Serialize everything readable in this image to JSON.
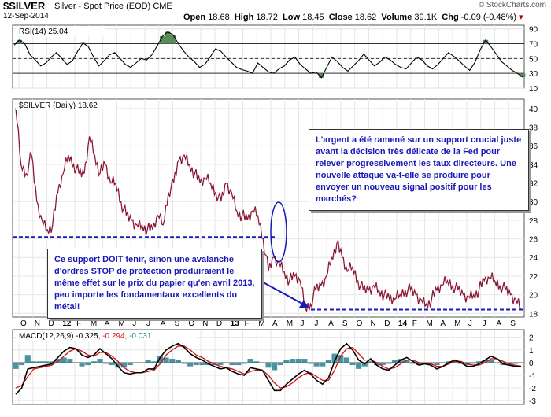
{
  "header": {
    "symbol": "$SILVER",
    "subtitle": "Silver - Spot Price (EOD)",
    "exchange": "CME",
    "date": "12-Sep-2014",
    "brand": "© StockCharts.com",
    "quote": {
      "open_label": "Open",
      "open": "18.68",
      "high_label": "High",
      "high": "18.72",
      "low_label": "Low",
      "low": "18.45",
      "close_label": "Close",
      "close": "18.62",
      "volume_label": "Volume",
      "volume": "39.1K",
      "chg_label": "Chg",
      "chg": "-0.09 (-0.48%)",
      "chg_color": "#c00000"
    }
  },
  "panels": {
    "rsi_label": "RSI(14) 25.04",
    "price_label": "$SILVER (Daily) 18.62",
    "macd_label": "MACD(12,26,9)",
    "macd_value1": "-0.325",
    "macd_value2": "-0.294",
    "macd_value3": "-0.031"
  },
  "annotations": {
    "top_right": "L'argent a été ramené sur un support crucial juste avant la décision très délicate de la Fed pour relever progressivement les taux directeurs. Une nouvelle attaque va-t-elle se produire pour envoyer un nouveau signal positif pour les marchés?",
    "bottom_left": "Ce support DOIT tenir, sinon une avalanche d'ordres STOP de protection produiraient le même effet sur le prix du papier qu'en avril 2013, peu importe les fondamentaux excellents du métal!"
  },
  "chart_data": [
    {
      "type": "line",
      "title": "RSI(14) 25.04",
      "yticks": [
        10,
        30,
        50,
        70,
        90
      ],
      "reference_lines": [
        30,
        50,
        70
      ],
      "ylim": [
        10,
        95
      ],
      "series": [
        {
          "values": [
            68,
            75,
            70,
            55,
            48,
            40,
            44,
            52,
            58,
            50,
            42,
            47,
            60,
            71,
            66,
            52,
            40,
            47,
            55,
            58,
            50,
            42,
            38,
            44,
            50,
            48,
            55,
            67,
            80,
            86,
            82,
            70,
            60,
            52,
            46,
            38,
            42,
            52,
            63,
            60,
            52,
            45,
            38,
            35,
            33,
            30,
            44,
            38,
            32,
            30,
            36,
            40,
            48,
            52,
            42,
            36,
            30,
            32,
            24,
            38,
            52,
            46,
            38,
            33,
            40,
            47,
            56,
            48,
            40,
            45,
            52,
            48,
            42,
            38,
            36,
            44,
            52,
            48,
            40,
            36,
            42,
            50,
            58,
            53,
            47,
            40,
            34,
            45,
            62,
            75,
            66,
            56,
            46,
            40,
            34,
            30,
            25
          ]
        }
      ]
    },
    {
      "type": "line",
      "title": "$SILVER (Daily) 18.62",
      "x_tick_labels": [
        "O",
        "N",
        "D",
        "12",
        "F",
        "M",
        "A",
        "M",
        "J",
        "J",
        "A",
        "S",
        "O",
        "N",
        "D",
        "13",
        "F",
        "M",
        "A",
        "M",
        "J",
        "J",
        "A",
        "S",
        "O",
        "N",
        "D",
        "14",
        "F",
        "M",
        "A",
        "M",
        "J",
        "J",
        "A",
        "S"
      ],
      "yticks": [
        18,
        20,
        22,
        24,
        26,
        28,
        30,
        32,
        34,
        36,
        38,
        40
      ],
      "ylim": [
        17.6,
        41
      ],
      "support_level": 26.2,
      "support_level_2": 18.4,
      "series": [
        {
          "values": [
            40,
            34,
            33,
            35,
            30,
            28,
            27,
            27.5,
            31,
            33,
            35,
            34,
            33,
            33,
            37,
            35,
            33,
            34,
            32,
            32,
            30,
            28.5,
            28,
            27.5,
            27.5,
            27,
            27,
            28.5,
            27.5,
            31,
            32,
            34.5,
            35,
            34,
            33,
            32,
            32.5,
            32,
            31,
            30,
            32,
            31,
            29,
            28.5,
            28,
            29,
            28.5,
            26,
            22.5,
            24,
            23.5,
            22.5,
            21.5,
            22,
            21.5,
            18.5,
            19,
            20.5,
            21,
            22,
            24,
            25.5,
            24,
            22.5,
            23,
            21.5,
            20.5,
            20.5,
            21,
            20.5,
            20,
            19.5,
            19.5,
            20,
            20.5,
            20.5,
            20,
            19.5,
            19,
            19.5,
            20.5,
            21,
            21.5,
            21,
            20.5,
            20,
            19.8,
            20,
            20.5,
            21.5,
            21.8,
            21.5,
            21,
            20.5,
            20,
            19.5,
            18.6
          ]
        }
      ]
    },
    {
      "type": "line",
      "title": "MACD(12,26,9)",
      "ylim": [
        -3.3,
        2.6
      ],
      "yticks": [
        -3,
        -2,
        -1,
        0,
        1,
        2
      ],
      "series": [
        {
          "name": "MACD(12,26,9) -0.325",
          "values": [
            -2.5,
            -2.0,
            -0.5,
            -0.4,
            -0.3,
            -0.2,
            -0.1,
            0.4,
            0.9,
            1.2,
            1.1,
            0.6,
            0.4,
            0.6,
            1.1,
            0.7,
            0.3,
            -0.3,
            -0.8,
            -0.9,
            -0.8,
            -0.8,
            -0.5,
            -0.5,
            0.4,
            1.0,
            1.3,
            1.5,
            1.2,
            0.7,
            0.4,
            0.2,
            -0.1,
            -0.3,
            -0.5,
            -0.4,
            -0.7,
            -0.9,
            -1.0,
            -0.4,
            -0.5,
            -0.6,
            -1.4,
            -2.2,
            -2.2,
            -1.7,
            -1.3,
            -0.9,
            -0.6,
            -0.9,
            -1.4,
            -1.7,
            -1.2,
            0.1,
            1.1,
            1.5,
            1.0,
            0.2,
            -0.1,
            0.3,
            -0.2,
            -0.5,
            -0.6,
            -0.2,
            0.2,
            0.4,
            0.1,
            -0.2,
            -0.1,
            -0.2,
            -0.5,
            -0.3,
            0.0,
            0.2,
            0.0,
            -0.3,
            -0.3,
            -0.1,
            0.2,
            0.5,
            0.3,
            -0.1,
            -0.2,
            -0.3,
            -0.3
          ]
        },
        {
          "name": "-0.294",
          "values": [
            -2.0,
            -1.8,
            -1.1,
            -0.5,
            -0.4,
            -0.3,
            -0.2,
            0.1,
            0.5,
            0.9,
            1.1,
            0.9,
            0.6,
            0.5,
            0.8,
            0.8,
            0.5,
            0.1,
            -0.4,
            -0.7,
            -0.8,
            -0.8,
            -0.7,
            -0.6,
            -0.1,
            0.6,
            1.0,
            1.3,
            1.3,
            1.0,
            0.6,
            0.4,
            0.1,
            -0.1,
            -0.3,
            -0.4,
            -0.5,
            -0.7,
            -0.9,
            -0.7,
            -0.6,
            -0.6,
            -1.0,
            -1.6,
            -2.0,
            -1.9,
            -1.6,
            -1.2,
            -0.9,
            -0.8,
            -1.1,
            -1.4,
            -1.4,
            -0.6,
            0.5,
            1.1,
            1.2,
            0.7,
            0.2,
            0.2,
            0.0,
            -0.3,
            -0.5,
            -0.4,
            -0.1,
            0.2,
            0.2,
            0.0,
            -0.1,
            -0.1,
            -0.3,
            -0.3,
            -0.1,
            0.1,
            0.1,
            -0.1,
            -0.2,
            -0.2,
            0.0,
            0.3,
            0.3,
            0.1,
            -0.1,
            -0.2,
            -0.3
          ]
        },
        {
          "name": "-0.031",
          "values": [
            -0.5,
            -0.2,
            0.6,
            0.1,
            0.1,
            0.1,
            0.1,
            0.3,
            0.4,
            0.3,
            0.0,
            -0.3,
            -0.2,
            0.1,
            0.3,
            -0.1,
            -0.2,
            -0.4,
            -0.4,
            -0.2,
            0.0,
            0.0,
            0.2,
            0.1,
            0.5,
            0.4,
            0.3,
            0.2,
            -0.1,
            -0.3,
            -0.2,
            -0.2,
            -0.2,
            -0.2,
            -0.2,
            0.0,
            -0.2,
            -0.2,
            -0.1,
            0.3,
            0.1,
            0.0,
            -0.4,
            -0.6,
            -0.2,
            0.2,
            0.3,
            0.3,
            0.3,
            -0.1,
            -0.3,
            -0.3,
            0.2,
            0.7,
            0.6,
            0.4,
            -0.2,
            -0.5,
            -0.3,
            0.1,
            -0.2,
            -0.2,
            -0.1,
            0.2,
            0.3,
            0.2,
            -0.1,
            -0.2,
            0.0,
            -0.1,
            -0.2,
            0.0,
            0.1,
            0.1,
            -0.1,
            -0.2,
            -0.1,
            0.1,
            0.2,
            0.2,
            0.0,
            -0.2,
            -0.1,
            -0.1,
            0.0
          ]
        }
      ]
    }
  ]
}
